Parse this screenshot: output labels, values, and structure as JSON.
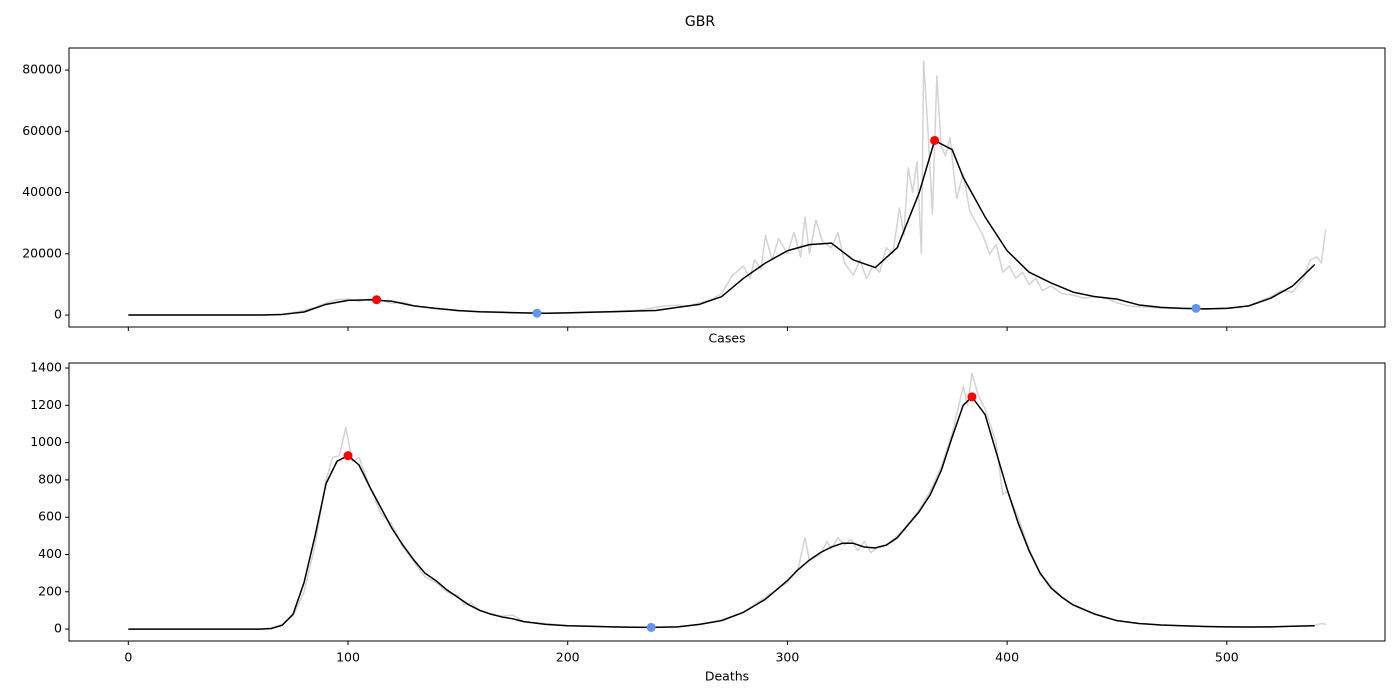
{
  "title": "GBR",
  "chart_data": [
    {
      "type": "line",
      "xlabel": "Cases",
      "xticklabels": false,
      "xlim": [
        -27,
        572
      ],
      "xticks": [
        0,
        100,
        200,
        300,
        400,
        500
      ],
      "ylim": [
        -3900,
        87200
      ],
      "yticks": [
        0,
        20000,
        40000,
        60000,
        80000
      ],
      "series": [
        {
          "kind": "line",
          "color": "#d3d3d3",
          "x": [
            0,
            10,
            20,
            30,
            40,
            50,
            60,
            65,
            70,
            75,
            80,
            85,
            90,
            95,
            100,
            105,
            110,
            115,
            120,
            125,
            130,
            135,
            140,
            145,
            150,
            155,
            160,
            165,
            170,
            175,
            180,
            185,
            190,
            195,
            200,
            205,
            210,
            215,
            220,
            225,
            230,
            235,
            240,
            245,
            250,
            255,
            260,
            265,
            270,
            275,
            280,
            283,
            285,
            288,
            290,
            293,
            296,
            300,
            303,
            306,
            308,
            310,
            313,
            316,
            320,
            323,
            326,
            330,
            333,
            336,
            339,
            342,
            345,
            348,
            351,
            353,
            355,
            357,
            359,
            361,
            362,
            364,
            366,
            368,
            370,
            372,
            374,
            377,
            380,
            383,
            386,
            389,
            392,
            395,
            398,
            401,
            404,
            407,
            410,
            413,
            416,
            420,
            425,
            430,
            435,
            440,
            445,
            450,
            455,
            460,
            465,
            470,
            475,
            480,
            485,
            490,
            495,
            500,
            505,
            510,
            515,
            520,
            525,
            530,
            535,
            538,
            541,
            543,
            545
          ],
          "values": [
            0,
            0,
            0,
            0,
            0,
            0,
            0,
            0,
            300,
            800,
            1500,
            2500,
            4000,
            5000,
            5200,
            4500,
            5300,
            4800,
            3800,
            4200,
            3000,
            2500,
            2000,
            1800,
            1300,
            1200,
            1000,
            900,
            800,
            700,
            700,
            600,
            550,
            700,
            800,
            900,
            1000,
            1100,
            1200,
            1400,
            1500,
            1800,
            2500,
            3000,
            3200,
            3000,
            4000,
            5000,
            7000,
            13000,
            16000,
            12000,
            18000,
            15000,
            26000,
            18000,
            25000,
            20000,
            27000,
            19000,
            32000,
            20000,
            31000,
            24000,
            22000,
            27000,
            17000,
            13000,
            18000,
            12000,
            16000,
            14000,
            22000,
            20000,
            35000,
            26000,
            48000,
            40000,
            50000,
            20000,
            83000,
            60000,
            33000,
            78000,
            55000,
            52000,
            58000,
            38000,
            46000,
            34000,
            30000,
            26000,
            20000,
            23000,
            14000,
            16000,
            12000,
            14000,
            10000,
            12000,
            8000,
            9500,
            7000,
            6500,
            5500,
            6000,
            5500,
            4000,
            3000,
            2700,
            2500,
            2300,
            2200,
            2100,
            2200,
            1900,
            2100,
            2300,
            2400,
            3000,
            4500,
            6000,
            8000,
            7500,
            12000,
            18000,
            19000,
            17000,
            28000
          ]
        },
        {
          "kind": "line",
          "color": "#000000",
          "x": [
            0,
            10,
            20,
            30,
            40,
            50,
            60,
            70,
            80,
            90,
            100,
            110,
            120,
            130,
            140,
            150,
            160,
            170,
            180,
            190,
            200,
            210,
            220,
            230,
            240,
            250,
            260,
            270,
            280,
            290,
            300,
            310,
            320,
            330,
            340,
            350,
            360,
            367,
            375,
            380,
            390,
            400,
            410,
            420,
            430,
            440,
            450,
            460,
            470,
            480,
            490,
            500,
            510,
            520,
            530,
            540
          ],
          "values": [
            0,
            0,
            0,
            0,
            0,
            0,
            0,
            200,
            1000,
            3500,
            4800,
            5000,
            4500,
            3000,
            2200,
            1500,
            1100,
            900,
            700,
            600,
            700,
            900,
            1100,
            1300,
            1500,
            2500,
            3500,
            6000,
            12000,
            17000,
            21000,
            23000,
            23500,
            18000,
            15500,
            22000,
            40000,
            57000,
            54000,
            45000,
            32000,
            21000,
            14000,
            10500,
            7500,
            6000,
            5200,
            3300,
            2500,
            2200,
            2000,
            2200,
            3000,
            5500,
            9500,
            16500
          ]
        },
        {
          "kind": "points",
          "color": "#ff0000",
          "x": [
            113,
            367
          ],
          "values": [
            5000,
            57000
          ]
        },
        {
          "kind": "points",
          "color": "#6495ed",
          "x": [
            186,
            486
          ],
          "values": [
            600,
            2200
          ]
        }
      ]
    },
    {
      "type": "line",
      "xlabel": "Deaths",
      "xticklabels": true,
      "xlim": [
        -27,
        572
      ],
      "xticks": [
        0,
        100,
        200,
        300,
        400,
        500
      ],
      "ylim": [
        -64,
        1427
      ],
      "yticks": [
        0,
        200,
        400,
        600,
        800,
        1000,
        1200,
        1400
      ],
      "series": [
        {
          "kind": "line",
          "color": "#d3d3d3",
          "x": [
            0,
            10,
            20,
            30,
            40,
            50,
            60,
            65,
            70,
            75,
            80,
            85,
            90,
            93,
            96,
            99,
            102,
            105,
            110,
            115,
            120,
            125,
            130,
            135,
            140,
            145,
            150,
            153,
            156,
            160,
            165,
            170,
            175,
            180,
            190,
            200,
            210,
            220,
            230,
            240,
            250,
            260,
            270,
            280,
            290,
            300,
            305,
            308,
            310,
            315,
            318,
            320,
            323,
            326,
            329,
            332,
            335,
            338,
            341,
            345,
            350,
            355,
            360,
            365,
            370,
            375,
            380,
            382,
            384,
            387,
            390,
            395,
            398,
            400,
            405,
            410,
            415,
            420,
            425,
            430,
            435,
            440,
            445,
            450,
            460,
            470,
            480,
            490,
            500,
            510,
            520,
            530,
            540,
            543,
            545
          ],
          "values": [
            0,
            0,
            0,
            0,
            0,
            0,
            0,
            4,
            25,
            70,
            200,
            450,
            800,
            920,
            930,
            1080,
            900,
            920,
            760,
            620,
            560,
            440,
            360,
            280,
            250,
            200,
            180,
            130,
            140,
            100,
            80,
            70,
            75,
            40,
            30,
            18,
            15,
            12,
            10,
            9,
            12,
            25,
            50,
            90,
            170,
            250,
            330,
            490,
            370,
            400,
            470,
            430,
            490,
            450,
            480,
            420,
            470,
            410,
            440,
            450,
            500,
            560,
            640,
            740,
            870,
            1050,
            1300,
            1200,
            1370,
            1250,
            1180,
            1000,
            720,
            740,
            600,
            430,
            300,
            230,
            170,
            130,
            100,
            80,
            60,
            45,
            30,
            22,
            17,
            14,
            12,
            10,
            11,
            15,
            20,
            30,
            25
          ]
        },
        {
          "kind": "line",
          "color": "#000000",
          "x": [
            0,
            10,
            20,
            30,
            40,
            50,
            60,
            65,
            70,
            75,
            80,
            85,
            90,
            95,
            100,
            105,
            110,
            115,
            120,
            125,
            130,
            135,
            140,
            145,
            150,
            155,
            160,
            165,
            170,
            175,
            180,
            190,
            200,
            210,
            220,
            230,
            238,
            250,
            260,
            270,
            280,
            290,
            300,
            305,
            310,
            315,
            320,
            325,
            330,
            335,
            340,
            345,
            350,
            355,
            360,
            365,
            370,
            375,
            380,
            384,
            390,
            395,
            400,
            405,
            410,
            415,
            420,
            425,
            430,
            440,
            450,
            460,
            470,
            480,
            490,
            500,
            510,
            520,
            530,
            540
          ],
          "values": [
            0,
            0,
            0,
            0,
            0,
            0,
            0,
            3,
            20,
            80,
            250,
            500,
            780,
            900,
            930,
            880,
            760,
            650,
            540,
            450,
            370,
            300,
            260,
            210,
            170,
            130,
            100,
            80,
            65,
            55,
            40,
            25,
            18,
            15,
            12,
            10,
            9,
            12,
            25,
            45,
            90,
            160,
            260,
            320,
            370,
            410,
            440,
            460,
            460,
            440,
            435,
            450,
            490,
            560,
            630,
            720,
            850,
            1030,
            1200,
            1245,
            1150,
            950,
            750,
            570,
            420,
            300,
            220,
            170,
            130,
            80,
            45,
            30,
            22,
            18,
            14,
            12,
            11,
            12,
            15,
            18
          ]
        },
        {
          "kind": "points",
          "color": "#ff0000",
          "x": [
            100,
            384
          ],
          "values": [
            930,
            1245
          ]
        },
        {
          "kind": "points",
          "color": "#6495ed",
          "x": [
            238
          ],
          "values": [
            9
          ]
        }
      ]
    }
  ]
}
